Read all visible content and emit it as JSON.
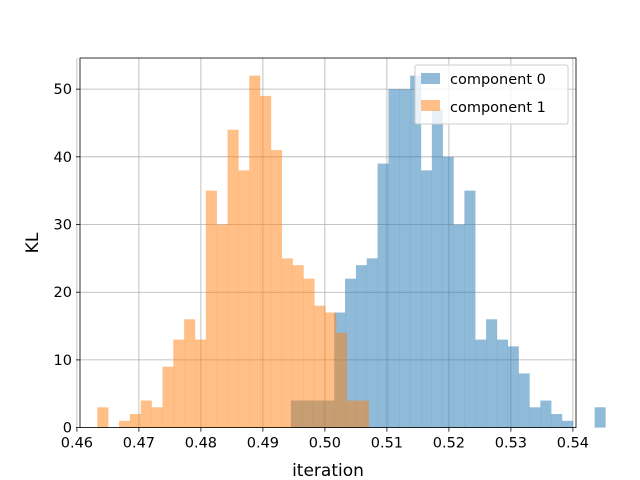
{
  "chart_data": {
    "type": "histogram",
    "xlabel": "iteration",
    "ylabel": "KL",
    "xlim": [
      0.4605,
      0.5405
    ],
    "ylim": [
      0,
      54.6
    ],
    "x_ticks": [
      0.46,
      0.47,
      0.48,
      0.49,
      0.5,
      0.51,
      0.52,
      0.53,
      0.54
    ],
    "x_tick_labels": [
      "0.46",
      "0.47",
      "0.48",
      "0.49",
      "0.50",
      "0.51",
      "0.52",
      "0.53",
      "0.54"
    ],
    "y_ticks": [
      0,
      10,
      20,
      30,
      40,
      50
    ],
    "y_tick_labels": [
      "0",
      "10",
      "20",
      "30",
      "40",
      "50"
    ],
    "grid": true,
    "legend_position": "top-right",
    "bar_alpha": 0.5,
    "series": [
      {
        "name": "component 0",
        "color": "#1f77b4",
        "bin_start": 0.4945,
        "bin_width": 0.00175,
        "counts": [
          4,
          4,
          4,
          4,
          17,
          22,
          24,
          25,
          39,
          50,
          50,
          52,
          38,
          47,
          40,
          30,
          35,
          13,
          16,
          13,
          12,
          8,
          3,
          4,
          2,
          1,
          0,
          0,
          3
        ]
      },
      {
        "name": "component 1",
        "color": "#ff7f0e",
        "bin_start": 0.4633,
        "bin_width": 0.00175,
        "counts": [
          3,
          0,
          1,
          2,
          4,
          3,
          9,
          13,
          16,
          13,
          35,
          30,
          44,
          38,
          52,
          49,
          41,
          25,
          24,
          22,
          18,
          17,
          14,
          4,
          4
        ]
      }
    ]
  }
}
